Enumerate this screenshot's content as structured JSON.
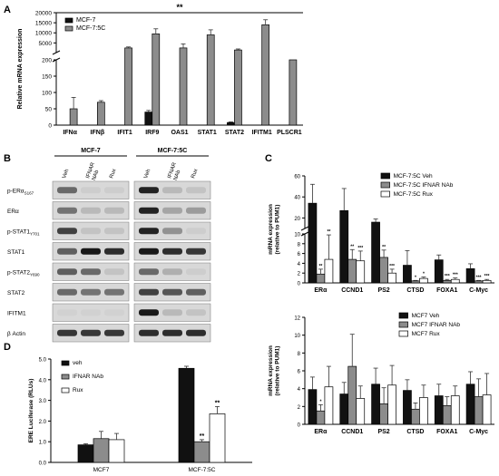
{
  "panels": {
    "A": "A",
    "B": "B",
    "C": "C",
    "D": "D"
  },
  "colors": {
    "black": "#111111",
    "gray": "#8c8c8c",
    "white": "#ffffff"
  },
  "chart_data": [
    {
      "panel": "A",
      "type": "bar",
      "ylabel": "Relative mRNA expression",
      "categories": [
        "IFNα",
        "IFNβ",
        "IFIT1",
        "IRF9",
        "OAS1",
        "STAT1",
        "STAT2",
        "IFITM1",
        "PLSCR1"
      ],
      "series": [
        {
          "name": "MCF-7",
          "values": [
            0,
            0,
            0,
            40,
            0,
            0,
            8,
            0,
            0
          ]
        },
        {
          "name": "MCF-7:5C",
          "values": [
            50,
            70,
            2500,
            9500,
            2500,
            9000,
            1500,
            14000,
            200
          ]
        }
      ],
      "errors": [
        [
          0,
          0,
          0,
          5,
          0,
          0,
          2,
          0,
          0
        ],
        [
          35,
          5,
          500,
          2500,
          2000,
          2500,
          500,
          2500,
          0
        ]
      ],
      "yticks_lower": [
        "0",
        "50",
        "100",
        "150",
        "200"
      ],
      "yticks_upper": [
        "5000",
        "10000",
        "15000",
        "20000"
      ],
      "ylim_lower": [
        0,
        200
      ],
      "ylim_upper": [
        200,
        20000
      ],
      "significance": "**"
    },
    {
      "panel": "C-top",
      "type": "bar",
      "ylabel": "mRNA expression (relative to PUM1)",
      "categories": [
        "ERα",
        "CCND1",
        "PS2",
        "CTSD",
        "FOXA1",
        "C-Myc"
      ],
      "series": [
        {
          "name": "MCF-7:5C Veh",
          "values": [
            34,
            27,
            16,
            3.6,
            4.7,
            2.9
          ]
        },
        {
          "name": "MCF-7:5C IFNAR NAb",
          "values": [
            1.8,
            4.8,
            5.2,
            0.4,
            0.5,
            0.4
          ]
        },
        {
          "name": "MCF-7:5C Rux",
          "values": [
            4.8,
            4.5,
            2.0,
            0.9,
            0.7,
            0.5
          ]
        }
      ],
      "errors": [
        [
          18,
          21,
          3,
          3,
          1,
          1
        ],
        [
          1,
          2,
          1.5,
          0.1,
          0.2,
          0.1
        ],
        [
          5,
          2,
          0.8,
          0.3,
          0.3,
          0.2
        ]
      ],
      "yticks_lower": [
        "0",
        "2",
        "4",
        "6",
        "8",
        "10"
      ],
      "yticks_upper": [
        "20",
        "40",
        "60"
      ],
      "ylim_lower": [
        0,
        10
      ],
      "ylim_upper": [
        10,
        60
      ],
      "star_marks": [
        [
          "",
          "",
          "",
          "",
          "",
          ""
        ],
        [
          "**",
          "**",
          "**",
          "*",
          "***",
          "***"
        ],
        [
          "**",
          "***",
          "***",
          "*",
          "***",
          "***"
        ]
      ]
    },
    {
      "panel": "C-bottom",
      "type": "bar",
      "ylabel": "mRNA expression (relative to PUM1)",
      "categories": [
        "ERα",
        "CCND1",
        "PS2",
        "CTSD",
        "FOXA1",
        "C-Myc"
      ],
      "series": [
        {
          "name": "MCF7 Veh",
          "values": [
            3.9,
            3.4,
            4.5,
            3.8,
            3.2,
            4.5
          ]
        },
        {
          "name": "MCF7 IFNAR NAb",
          "values": [
            1.5,
            6.5,
            2.3,
            1.7,
            2.1,
            3.1
          ]
        },
        {
          "name": "MCF7 Rux",
          "values": [
            4.2,
            2.9,
            4.4,
            3.0,
            3.2,
            3.3
          ]
        }
      ],
      "errors": [
        [
          1.4,
          1.3,
          1.8,
          1.2,
          1.3,
          1.4
        ],
        [
          0.7,
          3.6,
          1.8,
          0.7,
          1.0,
          2.0
        ],
        [
          2.3,
          1.4,
          2.2,
          1.4,
          1.1,
          2.4
        ]
      ],
      "yticks": [
        "0",
        "2",
        "4",
        "6",
        "8",
        "10",
        "12"
      ],
      "ylim": [
        0,
        12
      ],
      "star_marks": [
        [
          "",
          "",
          "",
          "",
          "",
          ""
        ],
        [
          "*",
          "",
          "",
          "",
          "",
          ""
        ],
        [
          "",
          "",
          "",
          "",
          "",
          ""
        ]
      ]
    },
    {
      "panel": "D",
      "type": "bar",
      "ylabel": "ERE Luciferase (RLUs)",
      "categories": [
        "MCF7",
        "MCF-7:5C"
      ],
      "series": [
        {
          "name": "veh",
          "values": [
            0.85,
            4.55
          ]
        },
        {
          "name": "IFNAR NAb",
          "values": [
            1.15,
            1.0
          ]
        },
        {
          "name": "Rux",
          "values": [
            1.1,
            2.35
          ]
        }
      ],
      "errors": [
        [
          0.05,
          0.1
        ],
        [
          0.35,
          0.1
        ],
        [
          0.3,
          0.35
        ]
      ],
      "yticks": [
        "0.0",
        "1.0",
        "2.0",
        "3.0",
        "4.0",
        "5.0"
      ],
      "ylim": [
        0,
        5
      ],
      "star_marks": [
        [
          "",
          ""
        ],
        [
          "",
          "**"
        ],
        [
          "",
          "**"
        ]
      ]
    }
  ],
  "blot": {
    "groups": [
      "MCF-7",
      "MCF-7:5C"
    ],
    "lanes": [
      "Veh",
      "IFNAR NAb",
      "Rux"
    ],
    "rows": [
      "p-ERα S167",
      "ERα",
      "p-STAT1 Y701",
      "STAT1",
      "p-STAT2 Y690",
      "STAT2",
      "IFITM1",
      "β Actin"
    ],
    "row_subscripts": [
      "S167",
      "",
      "Y701",
      "",
      "Y690",
      "",
      "",
      ""
    ],
    "row_mains": [
      "p-ERα",
      "ERα",
      "p-STAT1",
      "STAT1",
      "p-STAT2",
      "STAT2",
      "IFITM1",
      "β Actin"
    ],
    "intensity_left": [
      [
        0.55,
        0.05,
        0.05
      ],
      [
        0.5,
        0.15,
        0.15
      ],
      [
        0.75,
        0.1,
        0.1
      ],
      [
        0.6,
        0.95,
        0.85
      ],
      [
        0.6,
        0.55,
        0.1
      ],
      [
        0.55,
        0.5,
        0.5
      ],
      [
        0.03,
        0.03,
        0.03
      ],
      [
        0.8,
        0.8,
        0.8
      ]
    ],
    "intensity_right": [
      [
        0.9,
        0.15,
        0.1
      ],
      [
        0.9,
        0.25,
        0.3
      ],
      [
        0.9,
        0.35,
        0.05
      ],
      [
        0.95,
        0.85,
        0.8
      ],
      [
        0.55,
        0.2,
        0.05
      ],
      [
        0.75,
        0.65,
        0.6
      ],
      [
        0.95,
        0.15,
        0.1
      ],
      [
        0.85,
        0.85,
        0.85
      ]
    ]
  }
}
